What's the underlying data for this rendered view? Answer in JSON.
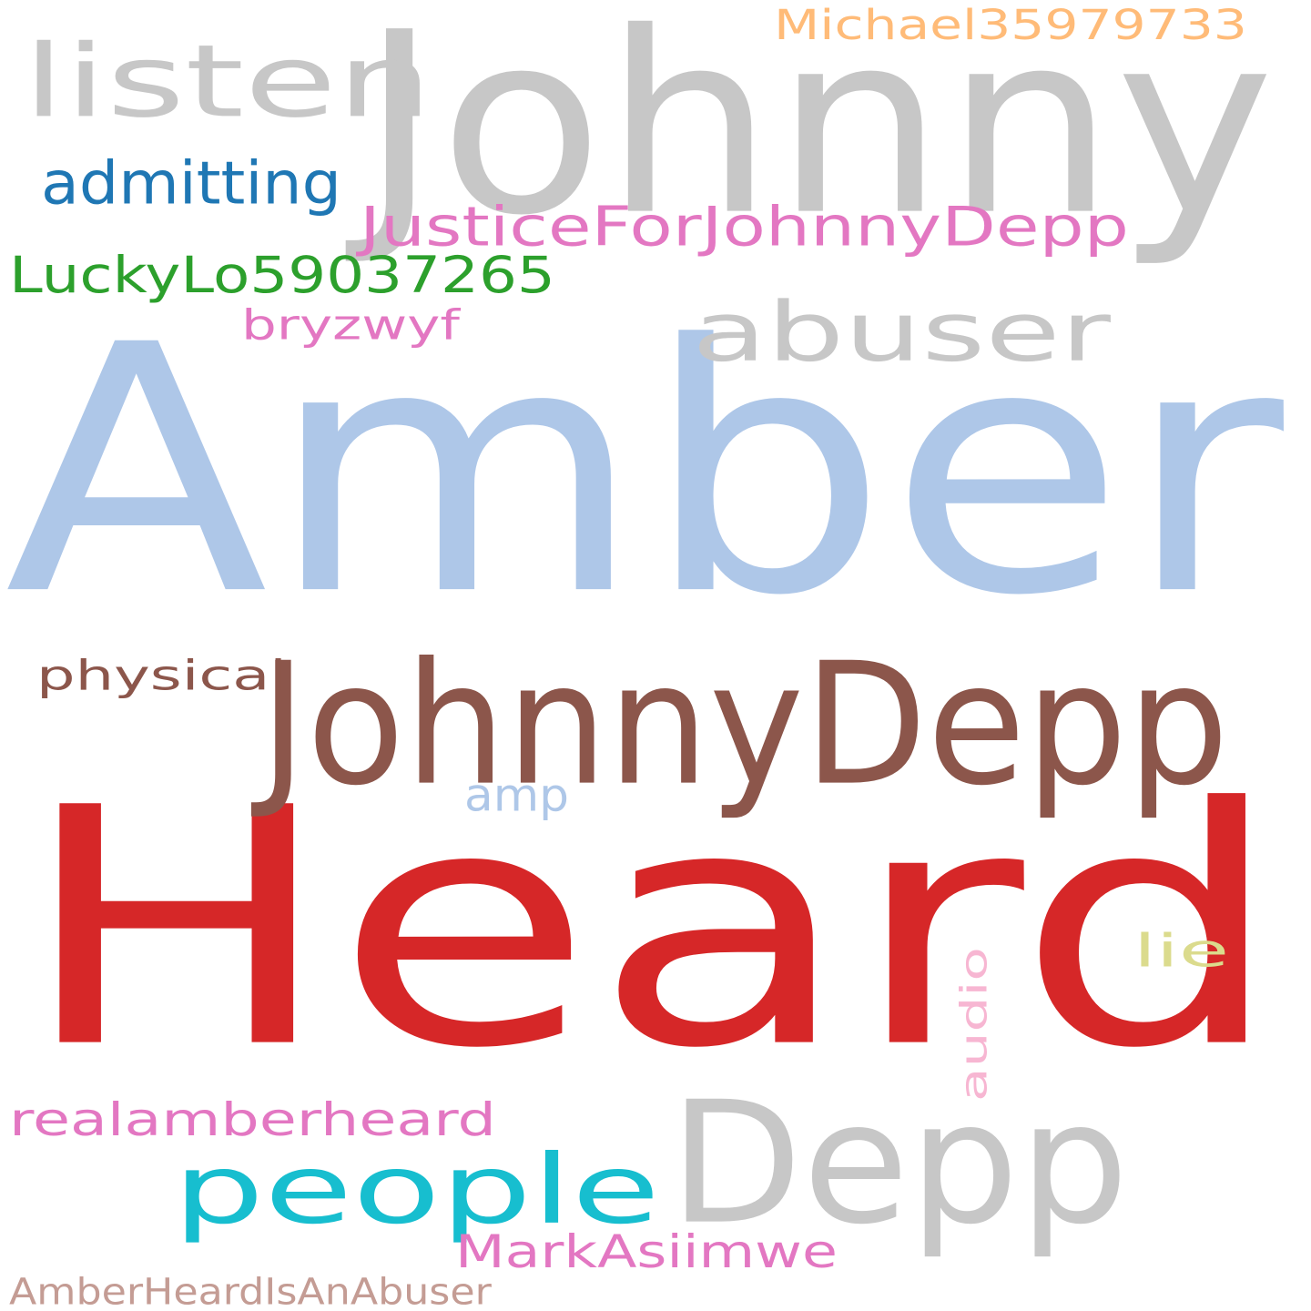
{
  "background": "#ffffff",
  "words": [
    {
      "id": "word-heard",
      "text": "Heard",
      "color": "#d62728"
    },
    {
      "id": "word-amber",
      "text": "Amber",
      "color": "#aec7e8"
    },
    {
      "id": "word-johnny",
      "text": "Johnny",
      "color": "#c7c7c7"
    },
    {
      "id": "word-depp",
      "text": "Depp",
      "color": "#c7c7c7"
    },
    {
      "id": "word-johnnydepp",
      "text": "JohnnyDepp",
      "color": "#8c564b"
    },
    {
      "id": "word-listen",
      "text": "listen",
      "color": "#c7c7c7"
    },
    {
      "id": "word-abuser",
      "text": "abuser",
      "color": "#c7c7c7"
    },
    {
      "id": "word-people",
      "text": "people",
      "color": "#17becf"
    },
    {
      "id": "word-michael",
      "text": "Michael35979733",
      "color": "#ffbb78"
    },
    {
      "id": "word-admitting",
      "text": "admitting",
      "color": "#1f77b4"
    },
    {
      "id": "word-justiceforjohnnydepp",
      "text": "JusticeForJohnnyDepp",
      "color": "#e377c2"
    },
    {
      "id": "word-luckylo",
      "text": "LuckyLo59037265",
      "color": "#2ca02c"
    },
    {
      "id": "word-bryzwyf",
      "text": "bryzwyf",
      "color": "#e377c2"
    },
    {
      "id": "word-physical",
      "text": "physical",
      "color": "#8c564b"
    },
    {
      "id": "word-amp",
      "text": "amp",
      "color": "#aec7e8"
    },
    {
      "id": "word-lie",
      "text": "lie",
      "color": "#dbdb8d"
    },
    {
      "id": "word-audio",
      "text": "audio",
      "color": "#f7b6d2"
    },
    {
      "id": "word-realamberheard",
      "text": "realamberheard",
      "color": "#e377c2"
    },
    {
      "id": "word-markasiimwe",
      "text": "MarkAsiimwe",
      "color": "#e377c2"
    },
    {
      "id": "word-amberheardisanabuser",
      "text": "AmberHeardIsAnAbuser",
      "color": "#c49c94"
    }
  ]
}
